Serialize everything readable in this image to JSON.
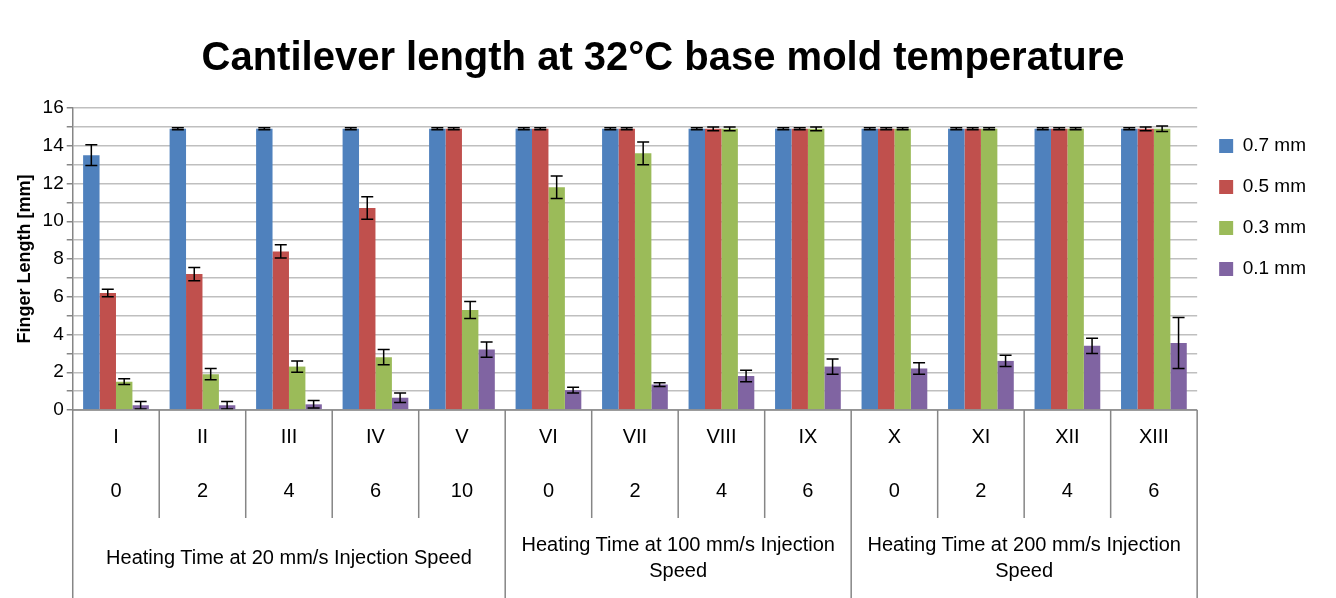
{
  "chart_data": {
    "type": "bar",
    "title": "Cantilever length at 32°C base mold temperature",
    "ylabel": "Finger Length [mm]",
    "categories": [
      "I\n0",
      "II\n2",
      "III\n4",
      "IV\n6",
      "V\n10",
      "VI\n0",
      "VII\n2",
      "VIII\n4",
      "IX\n6",
      "X\n0",
      "XI\n2",
      "XII\n4",
      "XIII\n6"
    ],
    "annotations": [
      "Heating Time at 20 mm/s Injection Speed",
      "Heating Time at 100 mm/s Injection Speed",
      "Heating Time at 200 mm/s Injection Speed"
    ],
    "series": [
      {
        "name": "0.7 mm",
        "color": "#4f81bd",
        "values": [
          13.5,
          14.9,
          14.9,
          14.9,
          14.9,
          14.9,
          14.9,
          14.9,
          14.9,
          14.9,
          14.9,
          14.9,
          14.9
        ],
        "errors": [
          0.55,
          0.05,
          0.05,
          0.05,
          0.05,
          0.05,
          0.05,
          0.05,
          0.05,
          0.05,
          0.05,
          0.05,
          0.05
        ]
      },
      {
        "name": "0.5 mm",
        "color": "#c0504d",
        "values": [
          6.2,
          7.2,
          8.4,
          10.7,
          14.9,
          14.9,
          14.9,
          14.9,
          14.9,
          14.9,
          14.9,
          14.9,
          14.9
        ],
        "errors": [
          0.2,
          0.35,
          0.35,
          0.6,
          0.05,
          0.05,
          0.05,
          0.1,
          0.05,
          0.05,
          0.05,
          0.05,
          0.1
        ]
      },
      {
        "name": "0.3 mm",
        "color": "#9bbb59",
        "values": [
          1.5,
          1.9,
          2.3,
          2.8,
          5.3,
          11.8,
          13.6,
          14.9,
          14.9,
          14.9,
          14.9,
          14.9,
          14.9
        ],
        "errors": [
          0.15,
          0.3,
          0.3,
          0.4,
          0.45,
          0.6,
          0.6,
          0.1,
          0.1,
          0.05,
          0.05,
          0.05,
          0.15
        ]
      },
      {
        "name": "0.1 mm",
        "color": "#8064a2",
        "values": [
          0.25,
          0.25,
          0.3,
          0.65,
          3.2,
          1.05,
          1.35,
          1.8,
          2.3,
          2.2,
          2.6,
          3.4,
          3.55
        ],
        "errors": [
          0.2,
          0.2,
          0.2,
          0.25,
          0.4,
          0.15,
          0.1,
          0.3,
          0.4,
          0.3,
          0.3,
          0.4,
          1.35
        ]
      }
    ],
    "ylim": [
      0,
      16
    ],
    "yticks": [
      0,
      {
        "value": 1,
        "label": null
      },
      2,
      {
        "value": 3,
        "label": null
      },
      4,
      {
        "value": 5,
        "label": null
      },
      6,
      {
        "value": 7,
        "label": null
      },
      8,
      {
        "value": 9,
        "label": null
      },
      10,
      {
        "value": 11,
        "label": null
      },
      12,
      {
        "value": 13,
        "label": null
      },
      14,
      {
        "value": 15,
        "label": null
      },
      16
    ],
    "grid": "y",
    "legend": "right"
  }
}
